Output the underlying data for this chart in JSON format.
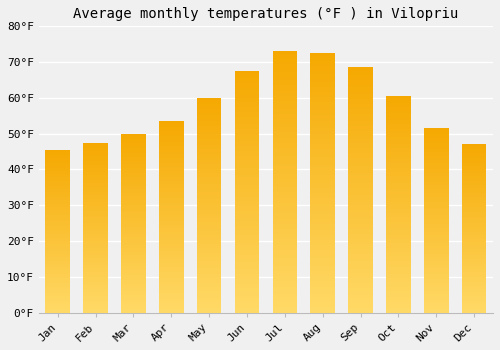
{
  "title": "Average monthly temperatures (°F ) in Vilopriu",
  "months": [
    "Jan",
    "Feb",
    "Mar",
    "Apr",
    "May",
    "Jun",
    "Jul",
    "Aug",
    "Sep",
    "Oct",
    "Nov",
    "Dec"
  ],
  "values": [
    45.5,
    47.5,
    50.0,
    53.5,
    60.0,
    67.5,
    73.0,
    72.5,
    68.5,
    60.5,
    51.5,
    47.0
  ],
  "bar_color_dark": "#F5A800",
  "bar_color_light": "#FFD966",
  "ylim": [
    0,
    80
  ],
  "yticks": [
    0,
    10,
    20,
    30,
    40,
    50,
    60,
    70,
    80
  ],
  "ytick_labels": [
    "0°F",
    "10°F",
    "20°F",
    "30°F",
    "40°F",
    "50°F",
    "60°F",
    "70°F",
    "80°F"
  ],
  "background_color": "#F0F0F0",
  "grid_color": "#FFFFFF",
  "title_fontsize": 10,
  "tick_fontsize": 8,
  "font_family": "monospace",
  "bar_width": 0.65
}
